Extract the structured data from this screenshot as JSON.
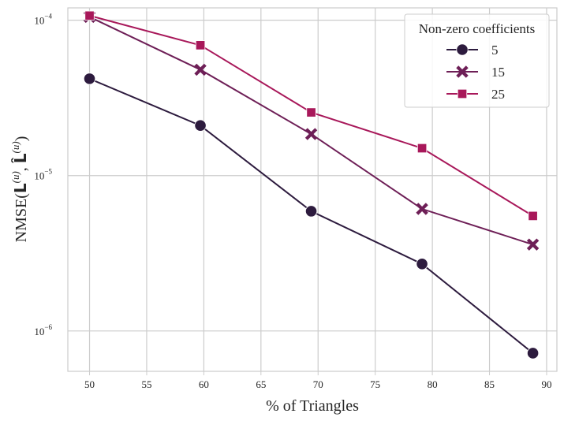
{
  "chart_data": {
    "type": "line",
    "title": "",
    "xlabel": "% of Triangles",
    "ylabel": "NMSE(L^(u), L̂^(u))",
    "yscale": "log",
    "xlim": [
      48.1,
      90.9
    ],
    "ylim": [
      5.5e-07,
      0.00012
    ],
    "grid": true,
    "legend": {
      "title": "Non-zero coefficients",
      "placement": "top-right"
    },
    "x_ticks": [
      50,
      55,
      60,
      65,
      70,
      75,
      80,
      85,
      90
    ],
    "x_tick_labels": [
      "50",
      "55",
      "60",
      "65",
      "70",
      "75",
      "80",
      "85",
      "90"
    ],
    "y_ticks": [
      1e-06,
      1e-05,
      0.0001
    ],
    "y_tick_labels": [
      {
        "base": "10",
        "exp": "−6"
      },
      {
        "base": "10",
        "exp": "−5"
      },
      {
        "base": "10",
        "exp": "−4"
      }
    ],
    "x": [
      50.0,
      59.7,
      69.4,
      79.1,
      88.8
    ],
    "series": [
      {
        "name": "5",
        "marker": "circle",
        "color": "#2d1b3e",
        "values": [
          4.2e-05,
          2.1e-05,
          5.9e-06,
          2.7e-06,
          7.2e-07
        ]
      },
      {
        "name": "15",
        "marker": "x",
        "color": "#6e1f57",
        "values": [
          0.000105,
          4.8e-05,
          1.85e-05,
          6.1e-06,
          3.6e-06
        ]
      },
      {
        "name": "25",
        "marker": "square",
        "color": "#a8185a",
        "values": [
          0.000107,
          6.9e-05,
          2.55e-05,
          1.5e-05,
          5.5e-06
        ]
      }
    ]
  }
}
